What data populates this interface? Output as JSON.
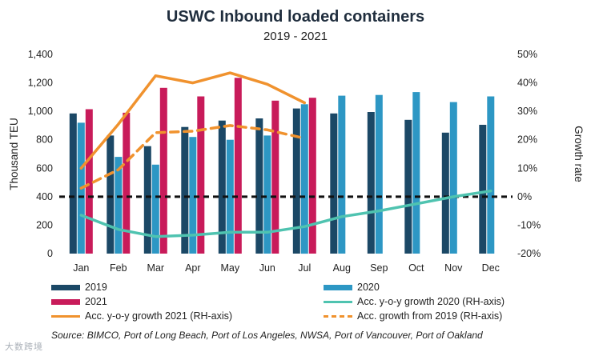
{
  "chart_data": {
    "type": "bar",
    "title": "USWC Inbound loaded containers",
    "subtitle": "2019 - 2021",
    "ylabel": "Thousand TEU",
    "y2label": "Growth rate",
    "ylim": [
      0,
      1400
    ],
    "y2lim": [
      -20,
      50
    ],
    "yticks": [
      "0",
      "200",
      "400",
      "600",
      "800",
      "1,000",
      "1,200",
      "1,400"
    ],
    "y2ticks": [
      "-20%",
      "-10%",
      "0%",
      "10%",
      "20%",
      "30%",
      "40%",
      "50%"
    ],
    "categories": [
      "Jan",
      "Feb",
      "Mar",
      "Apr",
      "May",
      "Jun",
      "Jul",
      "Aug",
      "Sep",
      "Oct",
      "Nov",
      "Dec"
    ],
    "bar_series": [
      {
        "name": "2019",
        "color": "#1b4866",
        "values": [
          985,
          830,
          755,
          890,
          935,
          950,
          1020,
          985,
          995,
          940,
          850,
          905
        ]
      },
      {
        "name": "2020",
        "color": "#2d97c4",
        "values": [
          920,
          680,
          625,
          820,
          800,
          830,
          1050,
          1110,
          1115,
          1135,
          1065,
          1105
        ]
      },
      {
        "name": "2021",
        "color": "#c81b5a",
        "values": [
          1015,
          990,
          1165,
          1105,
          1235,
          1075,
          1095
        ]
      }
    ],
    "line_series": [
      {
        "name": "Acc. y-o-y growth 2020 (RH-axis)",
        "color": "#4fc3b0",
        "style": "solid",
        "values": [
          -6.5,
          -11.5,
          -14.0,
          -13.5,
          -12.5,
          -12.5,
          -10.5,
          -7.0,
          -5.0,
          -2.5,
          0.0,
          2.0
        ]
      },
      {
        "name": "Acc. y-o-y growth 2021 (RH-axis)",
        "color": "#f0922e",
        "style": "solid",
        "values": [
          10.0,
          25.5,
          42.5,
          40.0,
          43.5,
          39.5,
          33.0
        ]
      },
      {
        "name": "Acc. growth from 2019 (RH-axis)",
        "color": "#f0922e",
        "style": "dashed",
        "values": [
          3.0,
          9.5,
          22.5,
          23.0,
          25.0,
          23.5,
          20.5
        ]
      }
    ],
    "reference_line": {
      "axis": "y2",
      "value": 0,
      "color": "#111111",
      "style": "dashed"
    },
    "grid": false,
    "legend_position": "bottom"
  },
  "legend": {
    "l2019": "2019",
    "l2020": "2020",
    "l2021": "2021",
    "lg2020": "Acc. y-o-y growth 2020 (RH-axis)",
    "lg2021": "Acc. y-o-y growth 2021 (RH-axis)",
    "lg2019": "Acc. growth from 2019 (RH-axis)"
  },
  "source": "Source: BIMCO, Port of Long Beach, Port of Los Angeles, NWSA, Port of Vancouver, Port of Oakland",
  "watermark": "大数跨境"
}
